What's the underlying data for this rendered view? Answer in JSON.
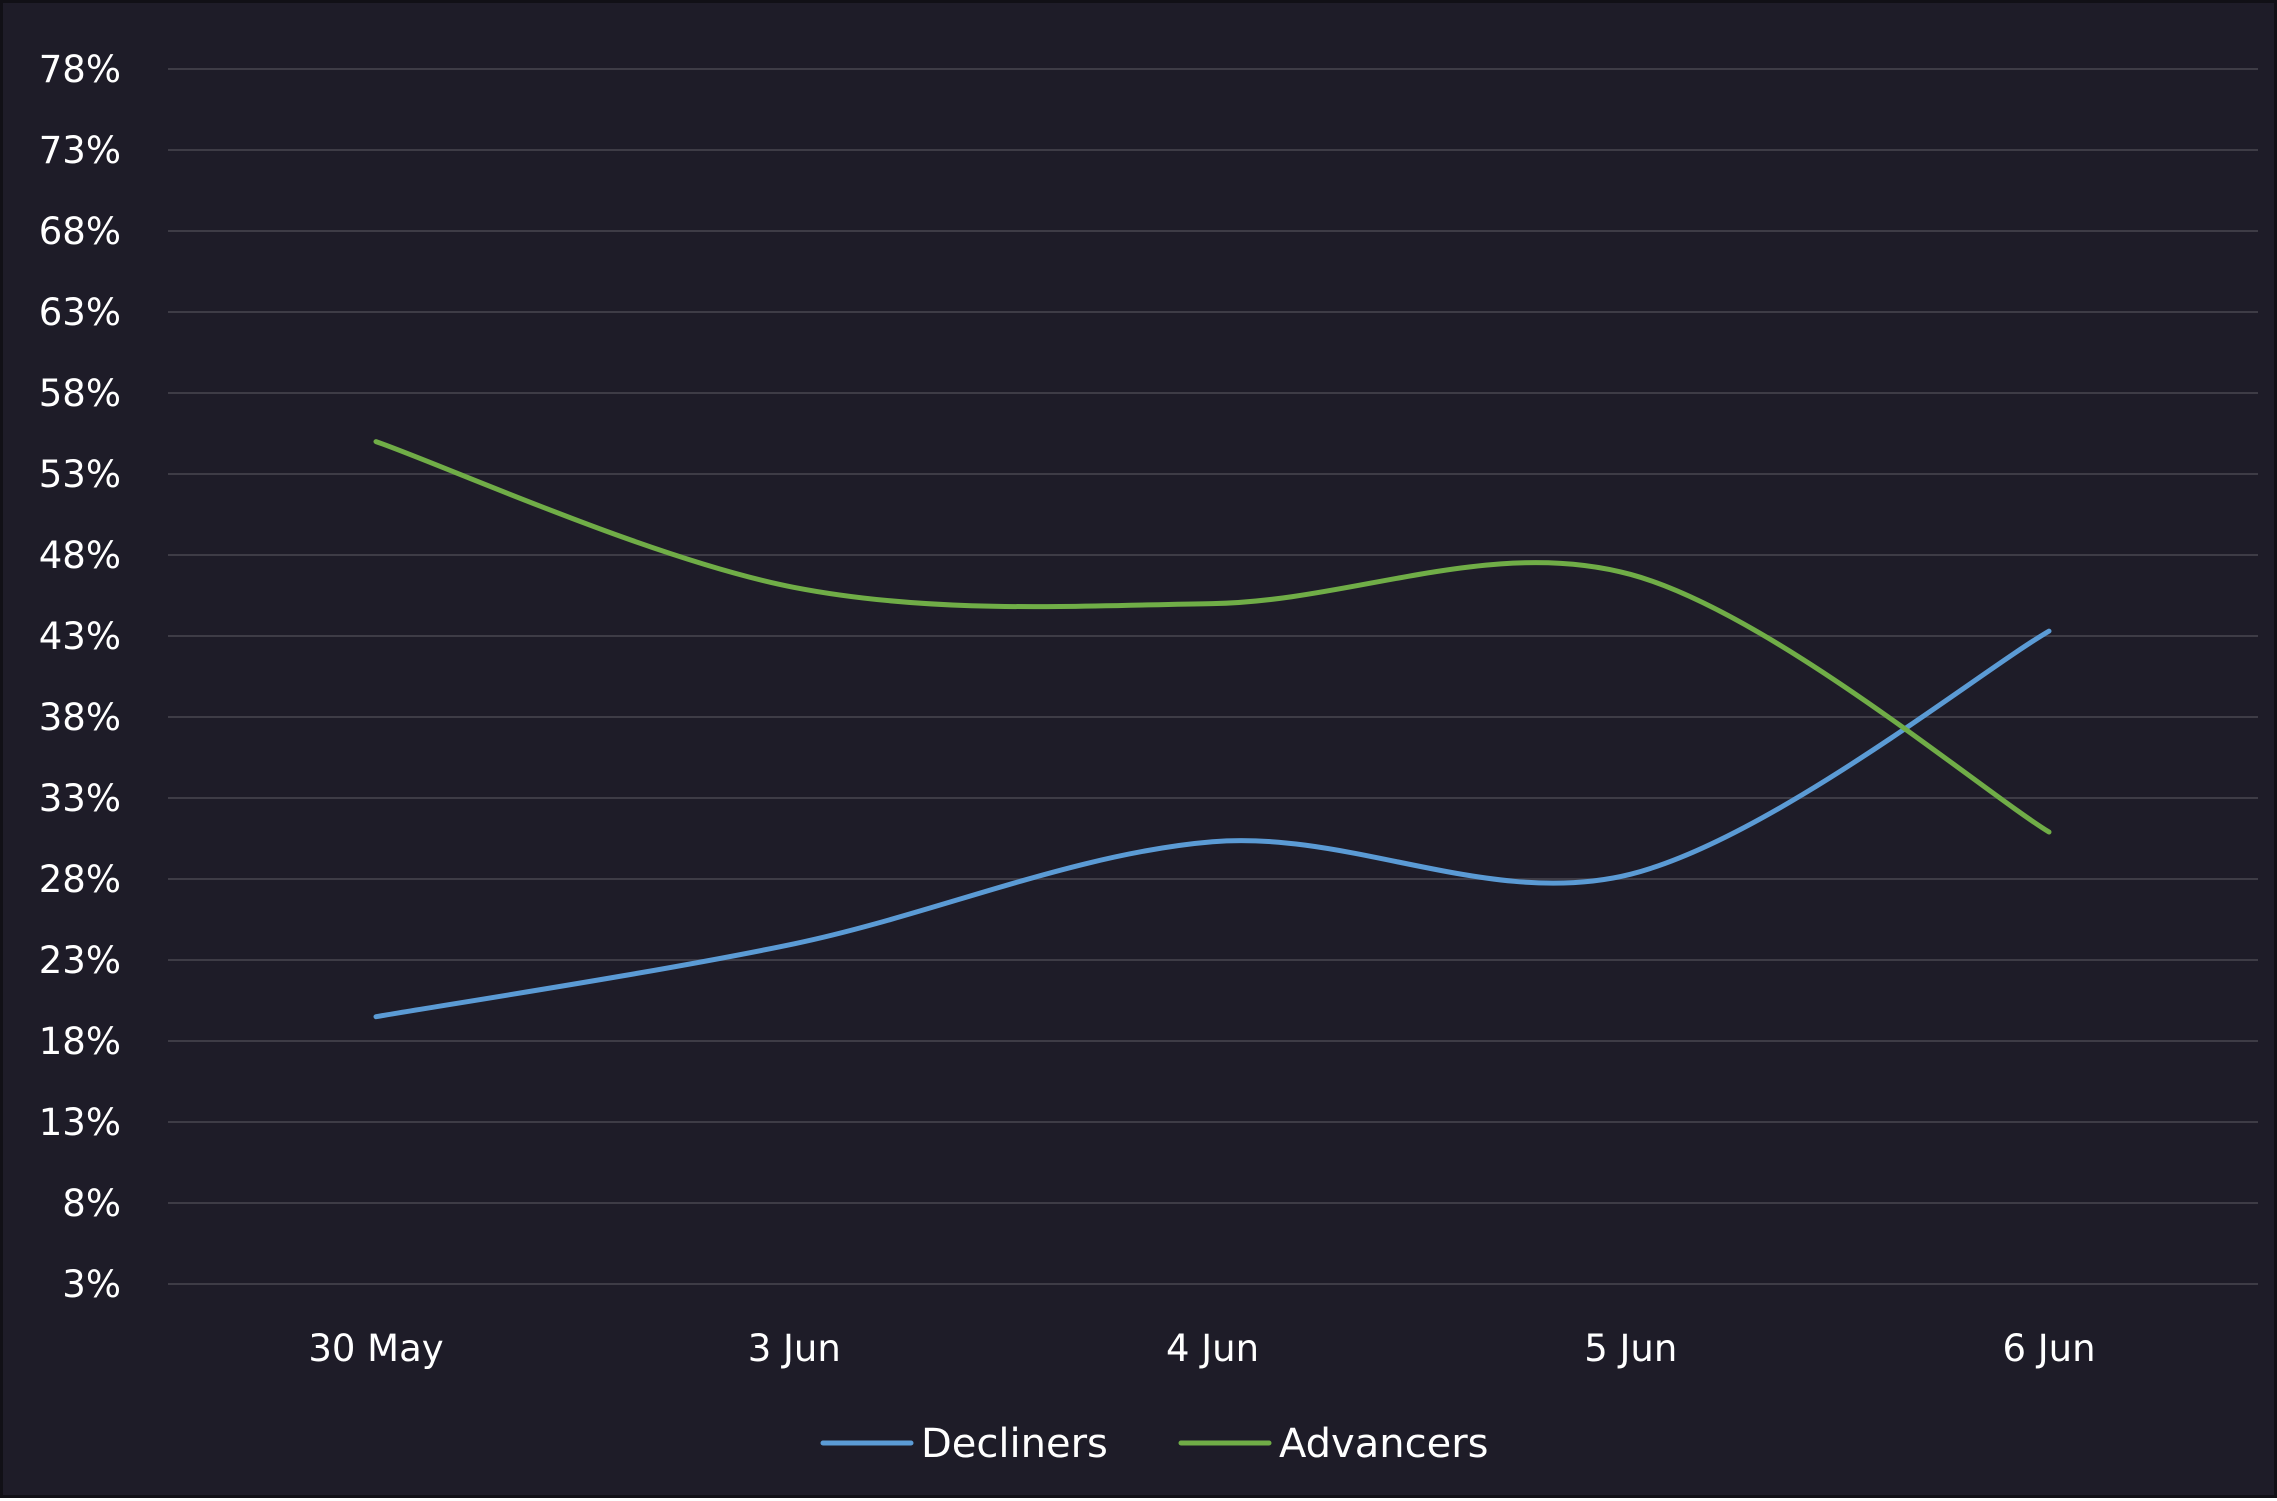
{
  "chart_data": {
    "type": "line",
    "title": "",
    "xlabel": "",
    "ylabel": "",
    "categories": [
      "30 May",
      "3 Jun",
      "4 Jun",
      "5 Jun",
      "6 Jun"
    ],
    "series": [
      {
        "name": "Decliners",
        "color": "#5b9bd5",
        "values": [
          19.5,
          24,
          30.3,
          28.3,
          43.3
        ]
      },
      {
        "name": "Advancers",
        "color": "#70ad47",
        "values": [
          55,
          46,
          45,
          46.8,
          30.9
        ]
      }
    ],
    "y_ticks": [
      "78%",
      "73%",
      "68%",
      "63%",
      "58%",
      "53%",
      "48%",
      "43%",
      "38%",
      "33%",
      "28%",
      "23%",
      "18%",
      "13%",
      "8%",
      "3%"
    ],
    "ylim": [
      3,
      78
    ],
    "y_unit": "%",
    "grid": true,
    "smooth": true,
    "legend_position": "bottom-center",
    "colors": {
      "background": "#1e1c28",
      "gridline": "#3e3c46",
      "text": "#ffffff"
    }
  }
}
